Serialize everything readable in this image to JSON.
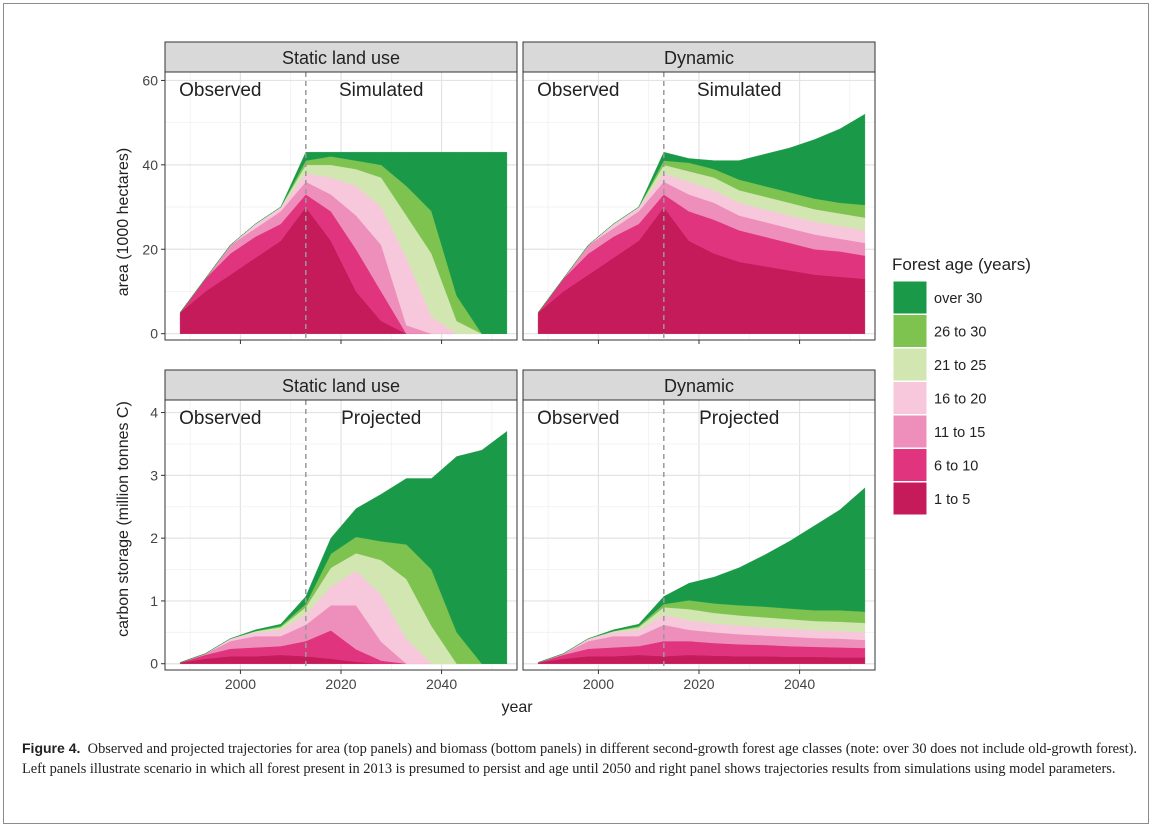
{
  "chart_data": {
    "type": "area",
    "stacked": true,
    "x_label": "year",
    "x_ticks": [
      2000,
      2020,
      2040
    ],
    "x_range": [
      1985,
      2055
    ],
    "vline_year": 2013,
    "grid": true,
    "legend": {
      "title": "Forest age (years)",
      "position": "right",
      "entries": [
        "over 30",
        "26 to 30",
        "21 to 25",
        "16 to 20",
        "11 to 15",
        "6 to 10",
        "1 to 5"
      ]
    },
    "series_colors": {
      "1 to 5": "#c51b5b",
      "6 to 10": "#e0357e",
      "11 to 15": "#ee8fbb",
      "16 to 20": "#f7c8dc",
      "21 to 25": "#d1e6b1",
      "26 to 30": "#7ec250",
      "over 30": "#1a9a48"
    },
    "rows": [
      {
        "y_label": "area (1000 hectares)",
        "y_ticks": [
          0,
          20,
          40,
          60
        ],
        "y_range": [
          -1.5,
          62
        ]
      },
      {
        "y_label": "carbon storage (million tonnes C)",
        "y_ticks": [
          0,
          1,
          2,
          3,
          4
        ],
        "y_range": [
          -0.1,
          4.2
        ]
      }
    ],
    "panels": [
      {
        "strip": "Static land use",
        "left_label": "Observed",
        "right_label": "Simulated",
        "row": 0,
        "col": 0,
        "years": [
          1988,
          1993,
          1998,
          2003,
          2008,
          2013,
          2018,
          2023,
          2028,
          2033,
          2038,
          2043,
          2048,
          2053
        ],
        "series": [
          {
            "name": "1 to 5",
            "values": [
              5,
              10,
              14,
              18,
              22,
              30,
              22,
              10,
              3,
              0,
              0,
              0,
              0,
              0
            ]
          },
          {
            "name": "6 to 10",
            "values": [
              0,
              3,
              5,
              5,
              4,
              3,
              7,
              10,
              7,
              0,
              0,
              0,
              0,
              0
            ]
          },
          {
            "name": "11 to 15",
            "values": [
              0,
              0,
              2,
              2,
              3,
              3,
              4,
              8,
              11,
              2,
              0,
              0,
              0,
              0
            ]
          },
          {
            "name": "16 to 20",
            "values": [
              0,
              0,
              0,
              1,
              1,
              2,
              4,
              7,
              9,
              16,
              4,
              0,
              0,
              0
            ]
          },
          {
            "name": "21 to 25",
            "values": [
              0,
              0,
              0,
              0,
              0,
              2,
              3,
              4,
              7,
              10,
              15,
              3,
              0,
              0
            ]
          },
          {
            "name": "26 to 30",
            "values": [
              0,
              0,
              0,
              0,
              0,
              1,
              2,
              2,
              3,
              7,
              10,
              6,
              0,
              0
            ]
          },
          {
            "name": "over 30",
            "values": [
              0,
              0,
              0,
              0,
              0,
              2,
              1,
              2,
              3,
              8,
              14,
              34,
              43,
              43
            ]
          }
        ]
      },
      {
        "strip": "Dynamic",
        "left_label": "Observed",
        "right_label": "Simulated",
        "row": 0,
        "col": 1,
        "years": [
          1988,
          1993,
          1998,
          2003,
          2008,
          2013,
          2018,
          2023,
          2028,
          2033,
          2038,
          2043,
          2048,
          2053
        ],
        "series": [
          {
            "name": "1 to 5",
            "values": [
              5,
              10,
              14,
              18,
              22,
              30,
              22,
              19,
              17,
              16,
              15,
              14,
              13.5,
              13
            ]
          },
          {
            "name": "6 to 10",
            "values": [
              0,
              3,
              5,
              5,
              4,
              3,
              7,
              8,
              7.5,
              7,
              6.5,
              6,
              6,
              5.5
            ]
          },
          {
            "name": "11 to 15",
            "values": [
              0,
              0,
              2,
              2,
              3,
              3,
              4,
              4,
              3.5,
              3.5,
              3.5,
              3.5,
              3,
              3
            ]
          },
          {
            "name": "16 to 20",
            "values": [
              0,
              0,
              0,
              1,
              1,
              2,
              3,
              3,
              3,
              3,
              3,
              3,
              3,
              3
            ]
          },
          {
            "name": "21 to 25",
            "values": [
              0,
              0,
              0,
              0,
              0,
              2,
              2.5,
              3,
              3,
              3,
              3,
              3,
              3,
              3
            ]
          },
          {
            "name": "26 to 30",
            "values": [
              0,
              0,
              0,
              0,
              0,
              1,
              2,
              2,
              2.5,
              2.5,
              2.5,
              2.5,
              2.5,
              3
            ]
          },
          {
            "name": "over 30",
            "values": [
              0,
              0,
              0,
              0,
              0,
              2,
              1,
              2,
              4.5,
              7.5,
              10.5,
              14,
              17.5,
              21.5
            ]
          }
        ]
      },
      {
        "strip": "Static land use",
        "left_label": "Observed",
        "right_label": "Projected",
        "row": 1,
        "col": 0,
        "years": [
          1988,
          1993,
          1998,
          2003,
          2008,
          2013,
          2018,
          2023,
          2028,
          2033,
          2038,
          2043,
          2048,
          2053
        ],
        "series": [
          {
            "name": "1 to 5",
            "values": [
              0.02,
              0.08,
              0.12,
              0.12,
              0.14,
              0.12,
              0.08,
              0.03,
              0,
              0,
              0,
              0,
              0,
              0
            ]
          },
          {
            "name": "6 to 10",
            "values": [
              0,
              0.06,
              0.12,
              0.14,
              0.14,
              0.24,
              0.45,
              0.2,
              0.05,
              0,
              0,
              0,
              0,
              0
            ]
          },
          {
            "name": "11 to 15",
            "values": [
              0,
              0.02,
              0.12,
              0.18,
              0.16,
              0.26,
              0.4,
              0.7,
              0.3,
              0,
              0,
              0,
              0,
              0
            ]
          },
          {
            "name": "16 to 20",
            "values": [
              0,
              0,
              0.04,
              0.06,
              0.1,
              0.16,
              0.3,
              0.55,
              0.75,
              0.4,
              0,
              0,
              0,
              0
            ]
          },
          {
            "name": "21 to 25",
            "values": [
              0,
              0,
              0,
              0.02,
              0.04,
              0.12,
              0.3,
              0.28,
              0.55,
              0.95,
              0.6,
              0,
              0,
              0
            ]
          },
          {
            "name": "26 to 30",
            "values": [
              0,
              0,
              0,
              0,
              0.02,
              0.05,
              0.22,
              0.26,
              0.3,
              0.55,
              0.9,
              0.5,
              0,
              0
            ]
          },
          {
            "name": "over 30",
            "values": [
              0,
              0,
              0,
              0.02,
              0.03,
              0.12,
              0.25,
              0.45,
              0.75,
              1.05,
              1.45,
              2.8,
              3.4,
              3.7
            ]
          }
        ]
      },
      {
        "strip": "Dynamic",
        "left_label": "Observed",
        "right_label": "Projected",
        "row": 1,
        "col": 1,
        "years": [
          1988,
          1993,
          1998,
          2003,
          2008,
          2013,
          2018,
          2023,
          2028,
          2033,
          2038,
          2043,
          2048,
          2053
        ],
        "series": [
          {
            "name": "1 to 5",
            "values": [
              0.02,
              0.08,
              0.12,
              0.12,
              0.14,
              0.12,
              0.14,
              0.13,
              0.12,
              0.12,
              0.11,
              0.11,
              0.1,
              0.1
            ]
          },
          {
            "name": "6 to 10",
            "values": [
              0,
              0.06,
              0.12,
              0.14,
              0.14,
              0.24,
              0.22,
              0.2,
              0.19,
              0.18,
              0.17,
              0.16,
              0.16,
              0.15
            ]
          },
          {
            "name": "11 to 15",
            "values": [
              0,
              0.02,
              0.12,
              0.18,
              0.16,
              0.26,
              0.18,
              0.17,
              0.16,
              0.15,
              0.15,
              0.14,
              0.14,
              0.13
            ]
          },
          {
            "name": "16 to 20",
            "values": [
              0,
              0,
              0.04,
              0.06,
              0.1,
              0.16,
              0.15,
              0.14,
              0.14,
              0.13,
              0.13,
              0.12,
              0.12,
              0.12
            ]
          },
          {
            "name": "21 to 25",
            "values": [
              0,
              0,
              0,
              0.02,
              0.04,
              0.12,
              0.18,
              0.17,
              0.16,
              0.16,
              0.15,
              0.15,
              0.15,
              0.15
            ]
          },
          {
            "name": "26 to 30",
            "values": [
              0,
              0,
              0,
              0,
              0.02,
              0.05,
              0.14,
              0.15,
              0.16,
              0.17,
              0.17,
              0.17,
              0.18,
              0.18
            ]
          },
          {
            "name": "over 30",
            "values": [
              0,
              0,
              0,
              0.02,
              0.03,
              0.12,
              0.27,
              0.42,
              0.6,
              0.82,
              1.07,
              1.35,
              1.6,
              1.97
            ]
          }
        ]
      }
    ]
  },
  "caption": {
    "label": "Figure 4.",
    "text": "Observed and projected trajectories for area (top panels) and biomass (bottom panels) in different second-growth forest age classes (note: over 30 does not include old-growth forest). Left panels illustrate scenario in which all forest present in 2013 is presumed to persist and age until 2050 and right panel shows trajectories results from simulations using model parameters."
  }
}
